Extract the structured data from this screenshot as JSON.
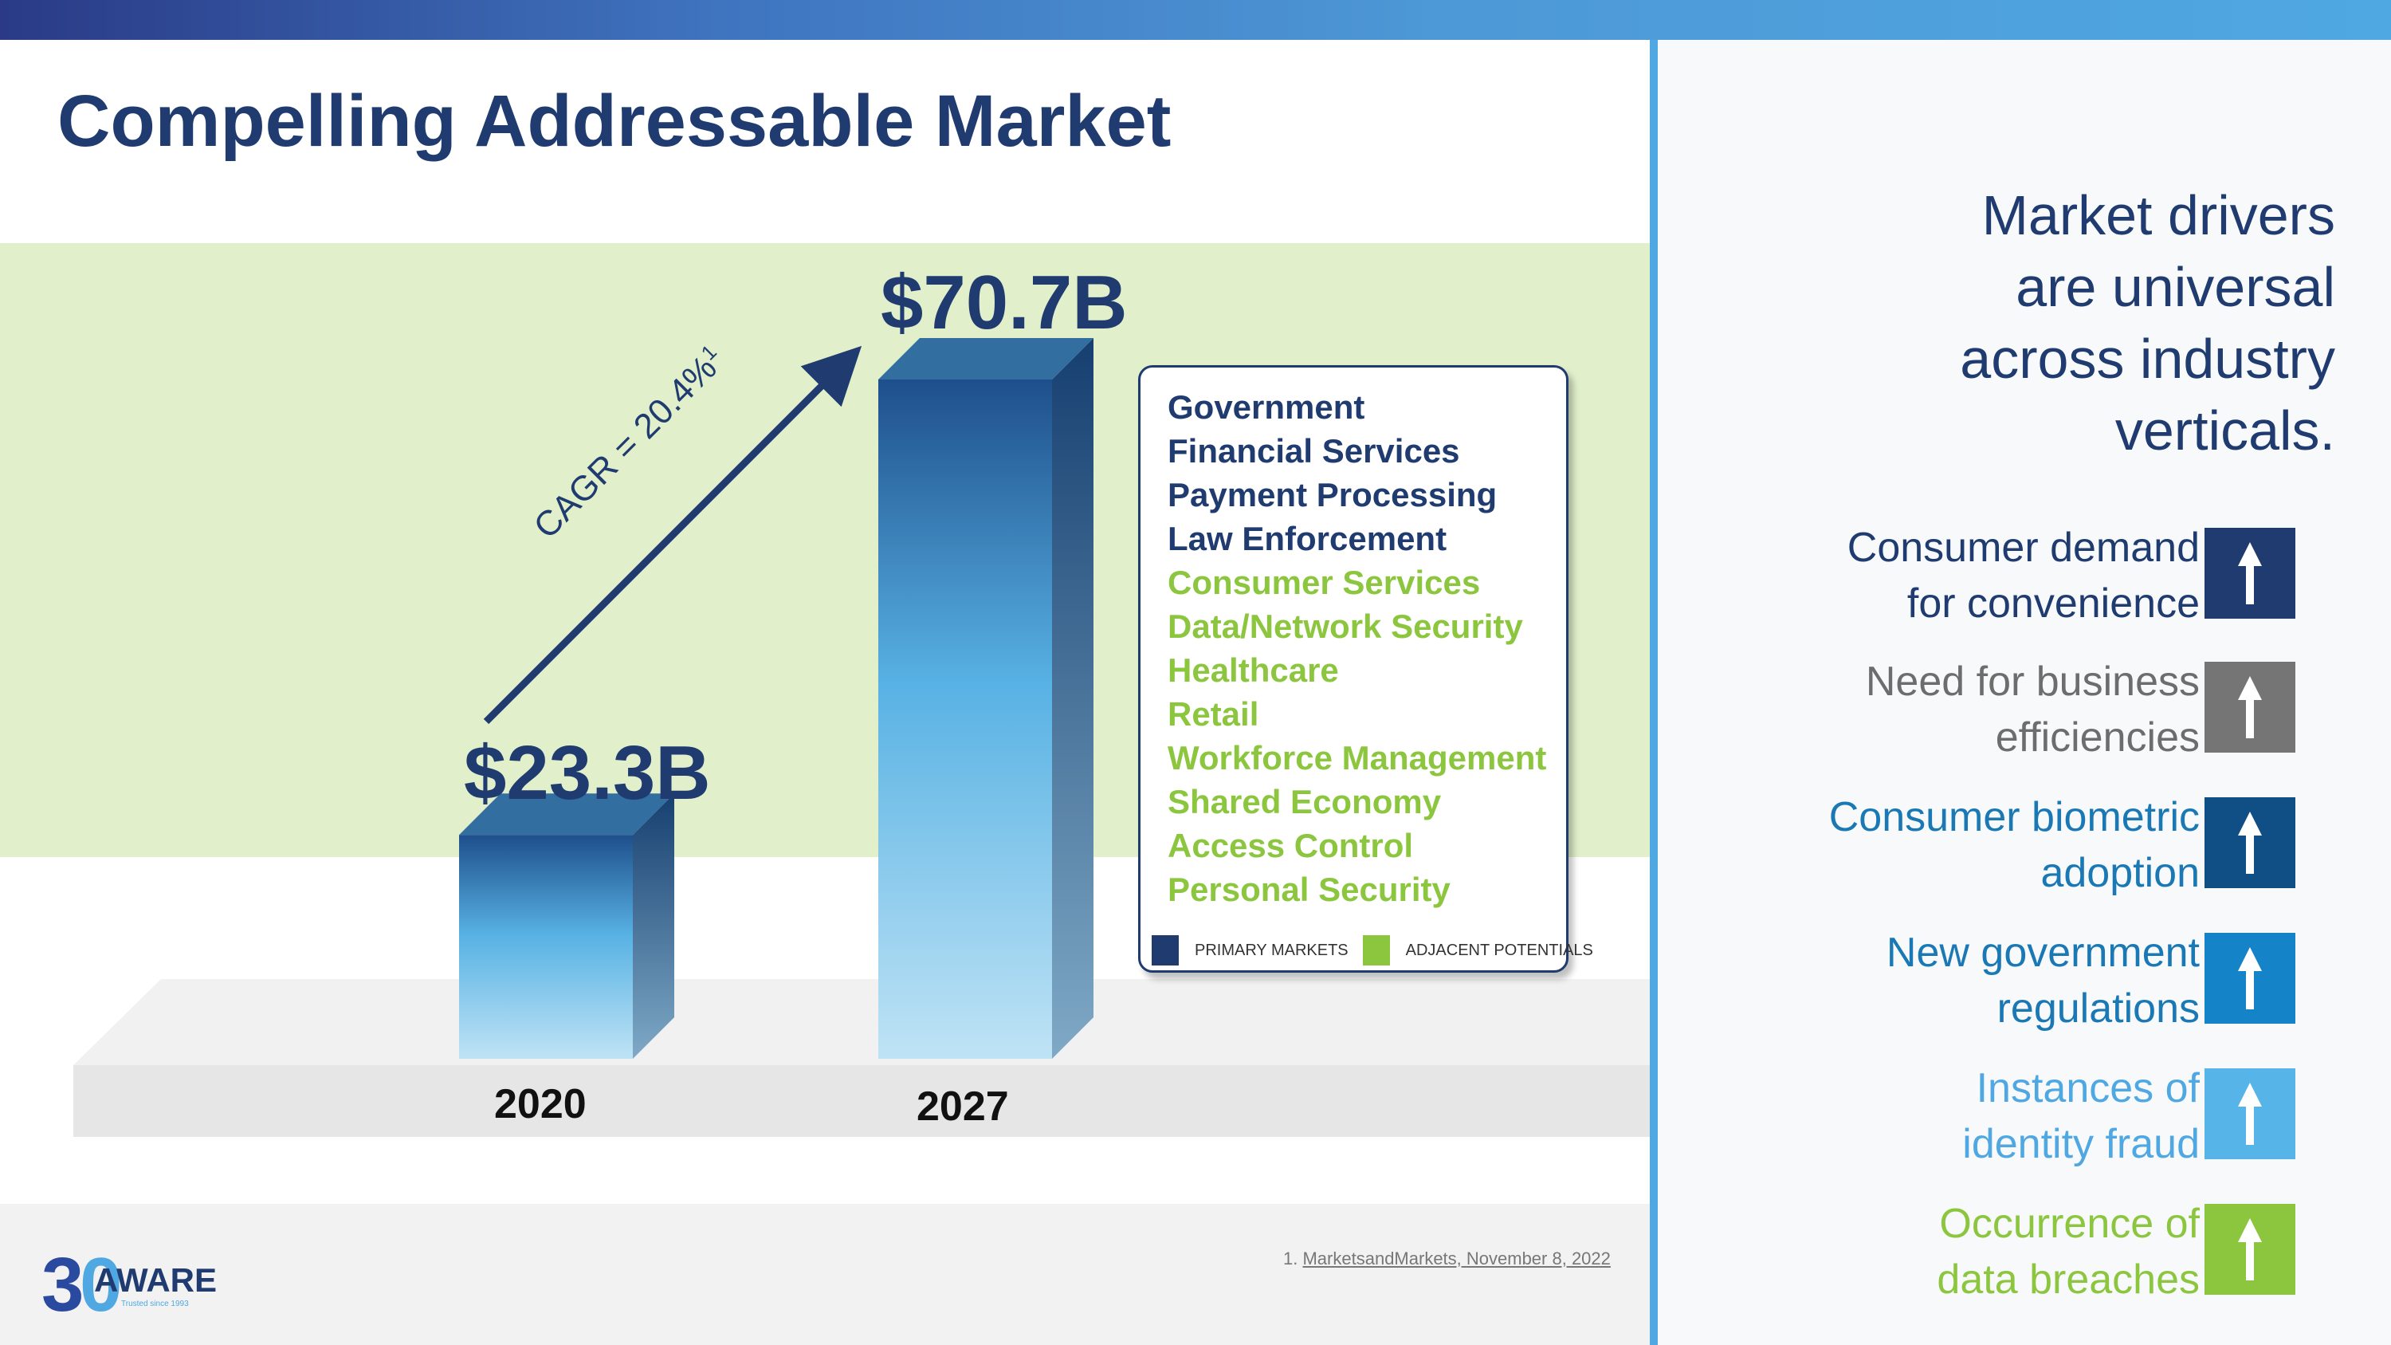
{
  "title": "Compelling Addressable Market",
  "chart_data": {
    "type": "bar",
    "categories": [
      "2020",
      "2027"
    ],
    "values": [
      23.3,
      70.7
    ],
    "value_labels": [
      "$23.3B",
      "$70.7B"
    ],
    "unit": "$B",
    "ylim": [
      0,
      75
    ],
    "annotation": "CAGR = 20.4%",
    "annotation_footnote_marker": "1",
    "grid": false,
    "colors": {
      "bar_top": "#1e4f8c",
      "bar_mid": "#58b2e4",
      "bar_bottom": "#bfe3f5",
      "value_label": "#1f3b6f"
    }
  },
  "segments": {
    "primary": [
      "Government",
      "Financial Services",
      "Payment Processing",
      "Law Enforcement"
    ],
    "adjacent": [
      "Consumer Services",
      "Data/Network Security",
      "Healthcare",
      "Retail",
      "Workforce Management",
      "Shared Economy",
      "Access Control",
      "Personal Security"
    ],
    "legend": {
      "primary_label": "PRIMARY MARKETS",
      "adjacent_label": "ADJACENT POTENTIALS",
      "primary_color": "#1f3b6f",
      "adjacent_color": "#8cc63f"
    }
  },
  "drivers": {
    "heading_lines": [
      "Market drivers",
      "are universal",
      "across industry",
      "verticals."
    ],
    "items": [
      {
        "line1": "Consumer demand",
        "line2": "for convenience",
        "text_color": "#1f3b6f",
        "icon_color": "#1f3b6f",
        "icon": "arrow-up-icon"
      },
      {
        "line1": "Need for business",
        "line2": "efficiencies",
        "text_color": "#6d6d6d",
        "icon_color": "#757575",
        "icon": "arrow-up-icon"
      },
      {
        "line1": "Consumer biometric",
        "line2": "adoption",
        "text_color": "#1a78b4",
        "icon_color": "#0f4f86",
        "icon": "arrow-up-icon"
      },
      {
        "line1": "New government",
        "line2": "regulations",
        "text_color": "#1a78b4",
        "icon_color": "#1583c8",
        "icon": "arrow-up-icon"
      },
      {
        "line1": "Instances of",
        "line2": "identity fraud",
        "text_color": "#4fa8e2",
        "icon_color": "#56b4e8",
        "icon": "arrow-up-icon"
      },
      {
        "line1": "Occurrence of",
        "line2": "data breaches",
        "text_color": "#8cc63f",
        "icon_color": "#8cc63f",
        "icon": "arrow-up-icon"
      }
    ]
  },
  "footnote": {
    "number": "1.",
    "source": "MarketsandMarkets, November 8, 2022"
  },
  "logo": {
    "numeral": "30",
    "name": "AWARE",
    "tagline": "Trusted since 1993"
  }
}
